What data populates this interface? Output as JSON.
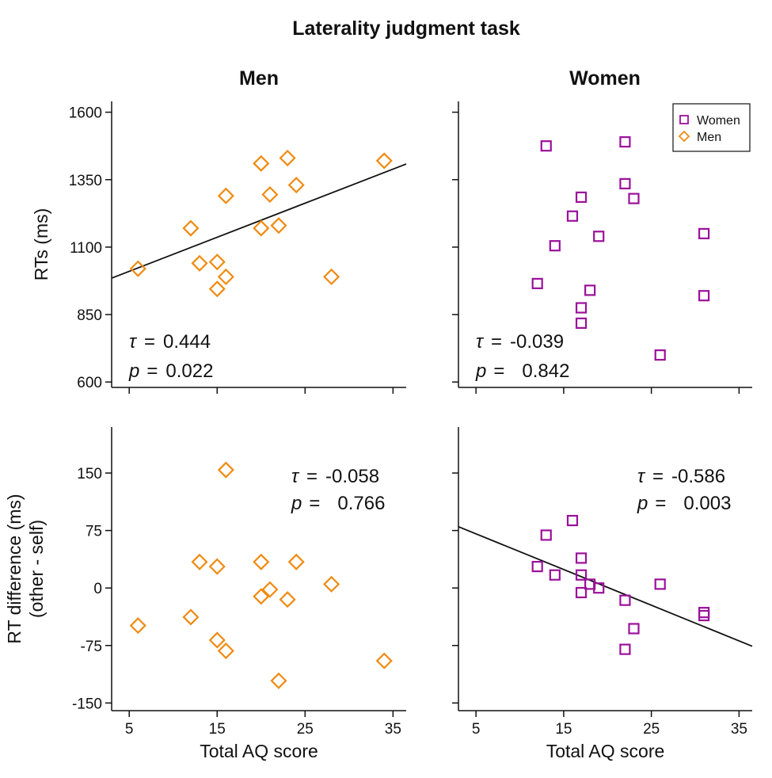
{
  "chart_data": {
    "type": "scatter",
    "title": "Laterality judgment task",
    "xlabel": "Total AQ score",
    "columns": [
      "Men",
      "Women"
    ],
    "legend": {
      "position": "top-right",
      "entries": [
        {
          "name": "Women",
          "marker": "square",
          "color": "#9b109b"
        },
        {
          "name": "Men",
          "marker": "diamond",
          "color": "#f08a10"
        }
      ]
    },
    "xlim": [
      3,
      36.5
    ],
    "xticks": [
      "5",
      "15",
      "25",
      "35"
    ],
    "xtick_values": [
      5,
      15,
      25,
      35
    ],
    "stat_symbol": "τ",
    "p_symbol": "p",
    "eq_sign": "=",
    "rows": [
      {
        "ylabel": "RTs (ms)",
        "ylim": [
          580,
          1640
        ],
        "yticks": [
          "1600",
          "1350",
          "1100",
          "850",
          "600"
        ],
        "ytick_values": [
          1600,
          1350,
          1100,
          850,
          600
        ],
        "panels": [
          {
            "group": "Men",
            "tau": "0.444",
            "p": "0.022",
            "stat_position": "bottom-left",
            "regression": {
              "x": [
                3,
                36.5
              ],
              "y": [
                985,
                1408
              ]
            },
            "x": [
              6,
              12,
              13,
              15,
              15,
              16,
              16,
              20,
              20,
              21,
              22,
              23,
              24,
              28,
              34
            ],
            "y": [
              1020,
              1170,
              1040,
              1045,
              945,
              1290,
              990,
              1410,
              1170,
              1295,
              1180,
              1430,
              1330,
              990,
              1420
            ]
          },
          {
            "group": "Women",
            "tau": "-0.039",
            "p": "0.842",
            "stat_position": "bottom-left",
            "regression": null,
            "x": [
              12,
              13,
              14,
              16,
              17,
              17,
              17,
              18,
              19,
              22,
              22,
              23,
              26,
              31,
              31
            ],
            "y": [
              965,
              1475,
              1105,
              1215,
              1285,
              875,
              818,
              940,
              1140,
              1490,
              1335,
              1280,
              700,
              1150,
              920
            ]
          }
        ]
      },
      {
        "ylabel": "RT difference (ms)",
        "ylabel2": "(other - self)",
        "ylim": [
          -160,
          210
        ],
        "yticks": [
          "150",
          "75",
          "0",
          "-75",
          "-150"
        ],
        "ytick_values": [
          150,
          75,
          0,
          -75,
          -150
        ],
        "panels": [
          {
            "group": "Men",
            "tau": "-0.058",
            "p": "0.766",
            "stat_position": "top-right",
            "regression": null,
            "x": [
              6,
              12,
              13,
              15,
              15,
              16,
              16,
              20,
              20,
              21,
              22,
              23,
              24,
              28,
              34
            ],
            "y": [
              -49,
              -38,
              34,
              28,
              -68,
              154,
              -82,
              34,
              -11,
              -2,
              -121,
              -15,
              34,
              5,
              -95
            ]
          },
          {
            "group": "Women",
            "tau": "-0.586",
            "p": "0.003",
            "stat_position": "top-right",
            "regression": {
              "x": [
                3,
                36.5
              ],
              "y": [
                80,
                -76
              ]
            },
            "x": [
              12,
              13,
              14,
              16,
              17,
              17,
              17,
              18,
              19,
              22,
              22,
              23,
              26,
              31,
              31
            ],
            "y": [
              28,
              69,
              17,
              88,
              39,
              17,
              -6,
              5,
              0,
              -16,
              -80,
              -53,
              5,
              -32,
              -36
            ]
          }
        ]
      }
    ]
  }
}
